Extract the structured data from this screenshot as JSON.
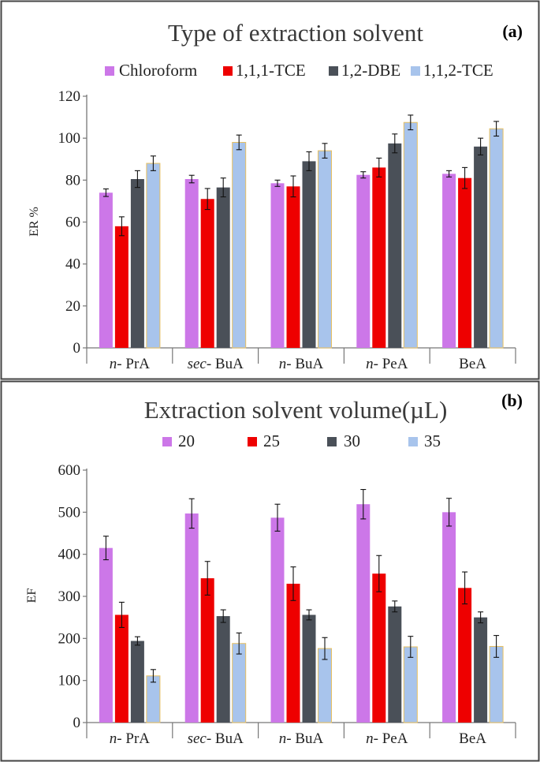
{
  "chart_data": [
    {
      "type": "bar",
      "panel_label": "(a)",
      "title": "Type of extraction solvent",
      "ylabel": "ER %",
      "xlabel": "",
      "ylim": [
        0,
        120
      ],
      "yticks": [
        0,
        20,
        40,
        60,
        80,
        100,
        120
      ],
      "grid": false,
      "legend_position": "top",
      "categories": [
        {
          "prefix": "n-",
          "name": " PrA"
        },
        {
          "prefix": "sec-",
          "name": " BuA"
        },
        {
          "prefix": "n-",
          "name": " BuA"
        },
        {
          "prefix": "n-",
          "name": " PeA"
        },
        {
          "prefix": "",
          "name": "BeA"
        }
      ],
      "series": [
        {
          "name": "Chloroform",
          "color": "#cc77e8",
          "values": [
            74,
            80.5,
            78.5,
            82.5,
            83
          ],
          "errors": [
            1.8,
            1.8,
            1.5,
            1.5,
            1.5
          ]
        },
        {
          "name": "1,1,1-TCE",
          "color": "#ee0000",
          "values": [
            58,
            71,
            77,
            86,
            81
          ],
          "errors": [
            4.5,
            5,
            5,
            4.5,
            5
          ]
        },
        {
          "name": "1,2-DBE",
          "color": "#4a5058",
          "values": [
            80.5,
            76.5,
            89,
            97.5,
            96
          ],
          "errors": [
            4,
            4.5,
            4.5,
            4.5,
            4
          ]
        },
        {
          "name": "1,1,2-TCE",
          "color": "#a8c4ec",
          "values": [
            88,
            98,
            94,
            107.5,
            104.5
          ],
          "errors": [
            3.5,
            3.5,
            3.5,
            3.5,
            3.5
          ]
        }
      ]
    },
    {
      "type": "bar",
      "panel_label": "(b)",
      "title": "Extraction solvent volume(µL)",
      "ylabel": "EF",
      "xlabel": "",
      "ylim": [
        0,
        600
      ],
      "yticks": [
        0,
        100,
        200,
        300,
        400,
        500,
        600
      ],
      "grid": false,
      "legend_position": "top",
      "categories": [
        {
          "prefix": "n-",
          "name": " PrA"
        },
        {
          "prefix": "sec-",
          "name": " BuA"
        },
        {
          "prefix": "n-",
          "name": " BuA"
        },
        {
          "prefix": "n-",
          "name": " PeA"
        },
        {
          "prefix": "",
          "name": "BeA"
        }
      ],
      "series": [
        {
          "name": "20",
          "color": "#cc77e8",
          "values": [
            415,
            497,
            487,
            519,
            500
          ],
          "errors": [
            28,
            35,
            32,
            35,
            33
          ]
        },
        {
          "name": "25",
          "color": "#ee0000",
          "values": [
            256,
            343,
            330,
            354,
            320
          ],
          "errors": [
            30,
            40,
            40,
            43,
            38
          ]
        },
        {
          "name": "30",
          "color": "#4a5058",
          "values": [
            194,
            253,
            256,
            276,
            250
          ],
          "errors": [
            10,
            15,
            12,
            13,
            13
          ]
        },
        {
          "name": "35",
          "color": "#a8c4ec",
          "values": [
            111,
            188,
            176,
            180,
            181
          ],
          "errors": [
            15,
            25,
            26,
            25,
            26
          ]
        }
      ]
    }
  ]
}
